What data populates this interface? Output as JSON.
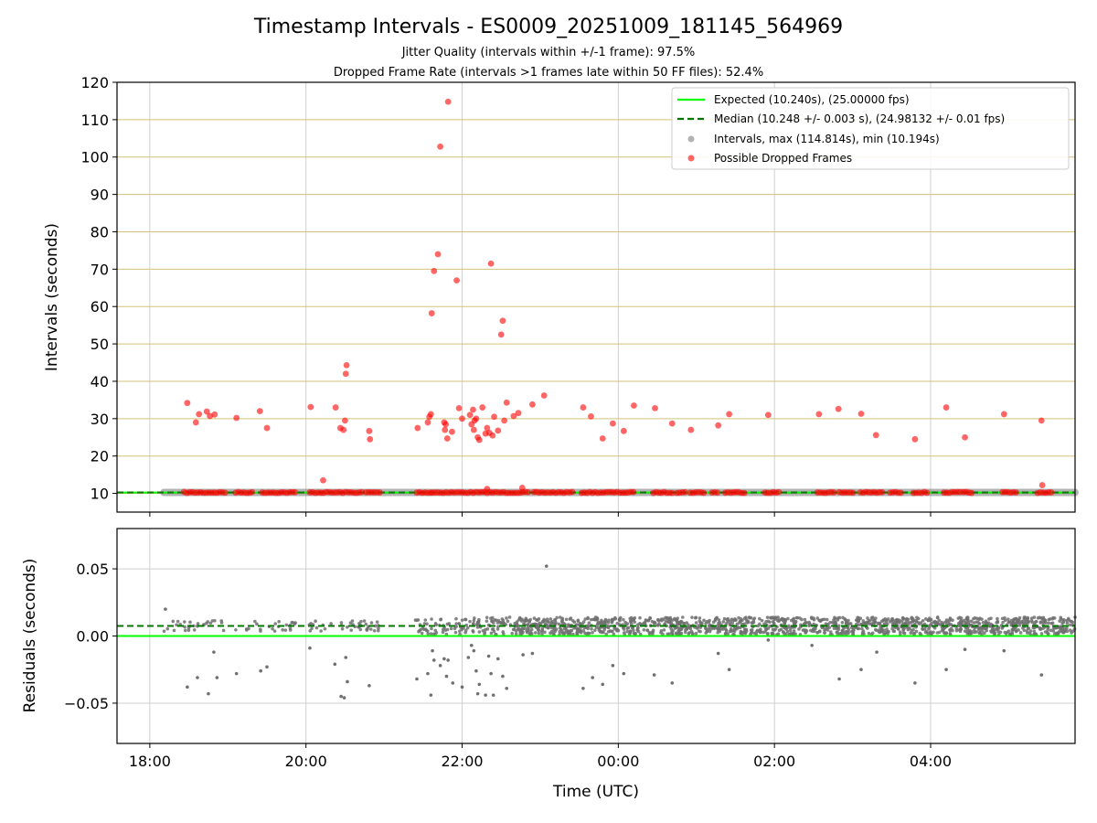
{
  "chart_data": [
    {
      "type": "scatter",
      "title": "Timestamp Intervals - ES0009_20251009_181145_564969",
      "subtitles": [
        "Jitter Quality (intervals within +/-1 frame): 97.5%",
        "Dropped Frame Rate (intervals >1 frames late within 50 FF files): 52.4%"
      ],
      "ylabel": "Intervals (seconds)",
      "xlabel": "",
      "xlim": [
        17.58,
        29.85
      ],
      "ylim": [
        5,
        120
      ],
      "yticks": [
        10,
        20,
        30,
        40,
        50,
        60,
        70,
        80,
        90,
        100,
        110,
        120
      ],
      "xticks": [
        18,
        20,
        22,
        24,
        26,
        28
      ],
      "xtick_labels": [
        "18:00",
        "20:00",
        "22:00",
        "00:00",
        "02:00",
        "04:00"
      ],
      "grid": true,
      "legend": {
        "position": "top-right",
        "entries": [
          "Expected (10.240s), (25.00000 fps)",
          "Median (10.248 +/- 0.003 s), (24.98132 +/- 0.01 fps)",
          "Intervals, max (114.814s), min (10.194s)",
          "Possible Dropped Frames"
        ]
      },
      "expected": 10.24,
      "median": 10.248,
      "series": [
        {
          "name": "Possible Dropped Frames",
          "color": "#ff0000",
          "points": [
            [
              18.48,
              34.2
            ],
            [
              18.59,
              29.0
            ],
            [
              18.63,
              31.2
            ],
            [
              18.73,
              31.9
            ],
            [
              18.77,
              30.7
            ],
            [
              18.83,
              31.1
            ],
            [
              19.11,
              30.2
            ],
            [
              19.41,
              32.0
            ],
            [
              19.5,
              27.5
            ],
            [
              20.06,
              33.1
            ],
            [
              20.22,
              13.5
            ],
            [
              20.38,
              33.0
            ],
            [
              20.44,
              27.5
            ],
            [
              20.48,
              27.0
            ],
            [
              20.5,
              29.5
            ],
            [
              20.51,
              42.0
            ],
            [
              20.52,
              44.3
            ],
            [
              20.81,
              26.7
            ],
            [
              20.82,
              24.5
            ],
            [
              21.43,
              27.5
            ],
            [
              21.56,
              29.0
            ],
            [
              21.58,
              30.5
            ],
            [
              21.6,
              31.2
            ],
            [
              21.61,
              58.2
            ],
            [
              21.64,
              69.5
            ],
            [
              21.69,
              74.0
            ],
            [
              21.72,
              102.8
            ],
            [
              21.77,
              29.0
            ],
            [
              21.78,
              27.0
            ],
            [
              21.79,
              28.5
            ],
            [
              21.81,
              24.7
            ],
            [
              21.82,
              114.8
            ],
            [
              21.87,
              26.5
            ],
            [
              21.93,
              67.0
            ],
            [
              21.96,
              32.8
            ],
            [
              22.0,
              30.0
            ],
            [
              22.1,
              31.0
            ],
            [
              22.12,
              28.5
            ],
            [
              22.14,
              32.4
            ],
            [
              22.15,
              27.0
            ],
            [
              22.16,
              29.5
            ],
            [
              22.18,
              30.0
            ],
            [
              22.2,
              25.0
            ],
            [
              22.22,
              24.3
            ],
            [
              22.26,
              33.0
            ],
            [
              22.3,
              26.0
            ],
            [
              22.32,
              27.5
            ],
            [
              22.35,
              26.2
            ],
            [
              22.37,
              71.5
            ],
            [
              22.39,
              25.5
            ],
            [
              22.41,
              30.5
            ],
            [
              22.46,
              26.8
            ],
            [
              22.5,
              52.5
            ],
            [
              22.52,
              56.2
            ],
            [
              22.54,
              29.5
            ],
            [
              22.57,
              34.3
            ],
            [
              22.66,
              30.7
            ],
            [
              22.72,
              31.5
            ],
            [
              22.9,
              33.8
            ],
            [
              23.05,
              36.2
            ],
            [
              23.55,
              33.0
            ],
            [
              23.65,
              30.6
            ],
            [
              23.8,
              24.7
            ],
            [
              23.93,
              28.7
            ],
            [
              24.07,
              26.7
            ],
            [
              24.2,
              33.5
            ],
            [
              24.47,
              32.8
            ],
            [
              24.69,
              28.7
            ],
            [
              24.93,
              27.0
            ],
            [
              25.28,
              28.2
            ],
            [
              25.42,
              31.2
            ],
            [
              25.92,
              31.0
            ],
            [
              26.57,
              31.2
            ],
            [
              26.82,
              32.6
            ],
            [
              27.11,
              31.3
            ],
            [
              27.3,
              25.6
            ],
            [
              27.8,
              24.5
            ],
            [
              28.2,
              33.0
            ],
            [
              28.44,
              25.0
            ],
            [
              28.94,
              31.2
            ],
            [
              29.42,
              29.5
            ],
            [
              29.43,
              12.2
            ],
            [
              22.32,
              11.2
            ],
            [
              22.77,
              11.5
            ]
          ],
          "baseline_clusters": [
            [
              18.44,
              18.98
            ],
            [
              19.1,
              19.32
            ],
            [
              19.44,
              19.88
            ],
            [
              20.05,
              20.72
            ],
            [
              20.77,
              20.97
            ],
            [
              21.42,
              21.6
            ],
            [
              21.62,
              22.88
            ],
            [
              22.92,
              23.43
            ],
            [
              23.53,
              24.23
            ],
            [
              24.45,
              24.53
            ],
            [
              24.55,
              24.72
            ],
            [
              24.75,
              24.88
            ],
            [
              24.92,
              25.13
            ],
            [
              25.2,
              25.28
            ],
            [
              25.37,
              25.65
            ],
            [
              25.88,
              26.07
            ],
            [
              26.55,
              26.77
            ],
            [
              26.83,
              27.03
            ],
            [
              27.1,
              27.4
            ],
            [
              27.48,
              27.65
            ],
            [
              27.78,
              27.98
            ],
            [
              28.17,
              28.4
            ],
            [
              28.42,
              28.55
            ],
            [
              28.92,
              29.12
            ],
            [
              29.37,
              29.58
            ]
          ]
        },
        {
          "name": "Intervals, max (114.814s), min (10.194s)",
          "color": "#808080",
          "note": "dense baseline of intervals near 10.24 s",
          "extent": [
            18.18,
            29.85
          ],
          "value": 10.25
        }
      ]
    },
    {
      "type": "scatter",
      "title": "",
      "ylabel": "Residuals (seconds)",
      "xlabel": "Time (UTC)",
      "xlim": [
        17.58,
        29.85
      ],
      "ylim": [
        -0.08,
        0.08
      ],
      "yticks": [
        -0.05,
        0.0,
        0.05
      ],
      "ytick_labels": [
        "−0.05",
        "0.00",
        "0.05"
      ],
      "xticks": [
        18,
        20,
        22,
        24,
        26,
        28
      ],
      "xtick_labels": [
        "18:00",
        "20:00",
        "22:00",
        "00:00",
        "02:00",
        "04:00"
      ],
      "grid": true,
      "expected_residual": 0.0,
      "median_residual": 0.0075,
      "outliers": [
        [
          18.2,
          0.02
        ],
        [
          18.48,
          -0.038
        ],
        [
          18.61,
          -0.031
        ],
        [
          18.75,
          -0.043
        ],
        [
          18.82,
          -0.012
        ],
        [
          18.86,
          -0.031
        ],
        [
          19.11,
          -0.028
        ],
        [
          19.42,
          -0.026
        ],
        [
          19.5,
          -0.023
        ],
        [
          20.05,
          -0.009
        ],
        [
          20.37,
          -0.021
        ],
        [
          20.45,
          -0.045
        ],
        [
          20.49,
          -0.046
        ],
        [
          20.51,
          -0.016
        ],
        [
          20.53,
          -0.034
        ],
        [
          20.81,
          -0.037
        ],
        [
          21.42,
          -0.032
        ],
        [
          21.56,
          -0.028
        ],
        [
          21.6,
          -0.044
        ],
        [
          21.62,
          -0.011
        ],
        [
          21.64,
          -0.018
        ],
        [
          21.72,
          -0.022
        ],
        [
          21.77,
          -0.017
        ],
        [
          21.8,
          -0.03
        ],
        [
          21.82,
          -0.018
        ],
        [
          21.88,
          -0.035
        ],
        [
          22.0,
          -0.038
        ],
        [
          22.08,
          -0.016
        ],
        [
          22.12,
          -0.007
        ],
        [
          22.15,
          -0.011
        ],
        [
          22.18,
          -0.026
        ],
        [
          22.2,
          -0.043
        ],
        [
          22.22,
          -0.036
        ],
        [
          22.3,
          -0.044
        ],
        [
          22.34,
          -0.015
        ],
        [
          22.37,
          -0.028
        ],
        [
          22.4,
          -0.044
        ],
        [
          22.46,
          -0.017
        ],
        [
          22.52,
          -0.03
        ],
        [
          22.57,
          -0.039
        ],
        [
          22.78,
          -0.014
        ],
        [
          22.9,
          -0.013
        ],
        [
          23.08,
          0.052
        ],
        [
          23.55,
          -0.039
        ],
        [
          23.67,
          -0.031
        ],
        [
          23.8,
          -0.036
        ],
        [
          23.93,
          -0.022
        ],
        [
          24.07,
          -0.028
        ],
        [
          24.46,
          -0.029
        ],
        [
          24.69,
          -0.035
        ],
        [
          25.28,
          -0.013
        ],
        [
          25.42,
          -0.025
        ],
        [
          25.92,
          -0.003
        ],
        [
          26.48,
          -0.007
        ],
        [
          26.83,
          -0.032
        ],
        [
          27.11,
          -0.025
        ],
        [
          27.31,
          -0.012
        ],
        [
          27.8,
          -0.035
        ],
        [
          28.2,
          -0.025
        ],
        [
          28.44,
          -0.01
        ],
        [
          28.94,
          -0.011
        ],
        [
          29.42,
          -0.029
        ]
      ]
    }
  ]
}
